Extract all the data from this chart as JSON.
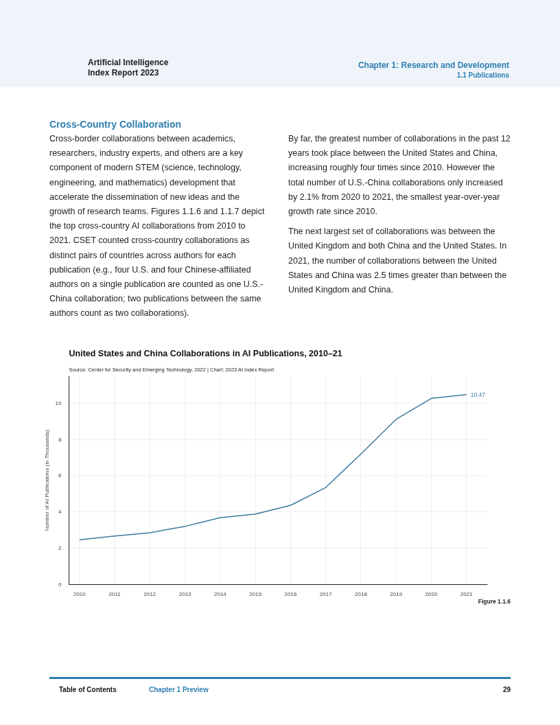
{
  "chart_data": {
    "type": "line",
    "title": "United States and China Collaborations in AI Publications, 2010–21",
    "subtitle": "Source: Center for Security and Emerging Technology, 2022 | Chart: 2023 AI Index Report",
    "ylabel": "Number of AI Publications (in Thousands)",
    "x": [
      2010,
      2011,
      2012,
      2013,
      2014,
      2015,
      2016,
      2017,
      2018,
      2019,
      2020,
      2021
    ],
    "series": [
      {
        "color": "#3b7a9c",
        "values": [
          2.47,
          2.68,
          2.86,
          3.21,
          3.69,
          3.89,
          4.37,
          5.35,
          7.2,
          9.11,
          10.26,
          10.47
        ],
        "value_labels": [
          null,
          null,
          null,
          null,
          null,
          null,
          null,
          null,
          null,
          null,
          null,
          "10.47"
        ]
      }
    ],
    "xlim": [
      2009.7,
      2021.6
    ],
    "ylim": [
      0,
      11.5
    ],
    "xticks": [
      2010,
      2011,
      2012,
      2013,
      2014,
      2015,
      2016,
      2017,
      2018,
      2019,
      2020,
      2021
    ],
    "yticks": [
      0,
      2,
      4,
      6,
      8,
      10
    ],
    "grid": true,
    "annotations": [
      "Artificial Intelligence",
      "Index Report 2023",
      "Chapter 1: Research and Development",
      "1.1 Publications",
      "Cross-Country Collaboration",
      "Cross-border collaborations between academics, researchers, industry experts, and others are a key component of modern STEM (science, technology, engineering, and mathematics) development that accelerate the dissemination of new ideas and the growth of research teams. Figures 1.1.6 and 1.1.7 depict the top cross-country AI collaborations from 2010 to 2021. CSET counted cross-country collaborations as distinct pairs of countries across authors for each publication (e.g., four U.S. and four Chinese-affiliated authors on a single publication are counted as one U.S.-China collaboration; two publications between the same authors count as two collaborations).",
      "By far, the greatest number of collaborations in the past 12 years took place between the United States and China, increasing roughly four times since 2010. However the total number of U.S.-China collaborations only increased by 2.1% from 2020 to 2021, the smallest year-over-year growth rate since 2010.",
      "The next largest set of collaborations was between the United Kingdom and both China and the United States. In 2021, the number of collaborations between the United States and China was 2.5 times greater than between the United Kingdom and China.",
      "Figure 1.1.6",
      "Table of Contents",
      "Chapter 1 Preview",
      "29"
    ]
  }
}
